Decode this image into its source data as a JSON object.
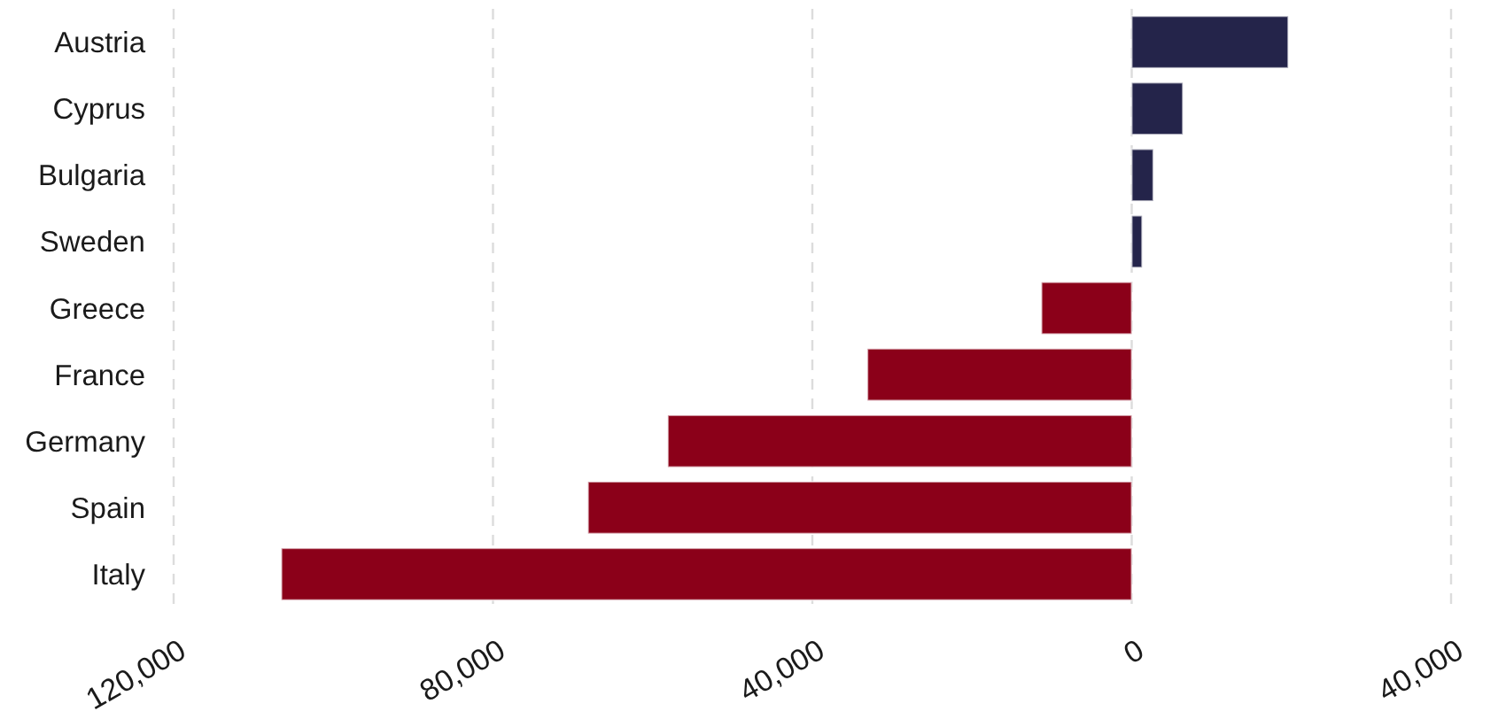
{
  "chart_data": {
    "type": "bar",
    "orientation": "horizontal",
    "categories": [
      "Austria",
      "Cyprus",
      "Bulgaria",
      "Sweden",
      "Greece",
      "France",
      "Germany",
      "Spain",
      "Italy"
    ],
    "values": [
      19600,
      6400,
      2700,
      1300,
      -11300,
      -33100,
      -58100,
      -68100,
      -106500
    ],
    "colors": [
      "#24244a",
      "#24244a",
      "#24244a",
      "#24244a",
      "#8b0019",
      "#8b0019",
      "#8b0019",
      "#8b0019",
      "#8b0019"
    ],
    "xlim": [
      -120000,
      40000
    ],
    "xticks": [
      {
        "value": -120000,
        "label": "120,000"
      },
      {
        "value": -80000,
        "label": "80,000"
      },
      {
        "value": -40000,
        "label": "40,000"
      },
      0,
      {
        "value": 40000,
        "label": "40,000"
      }
    ],
    "grid": "x"
  }
}
